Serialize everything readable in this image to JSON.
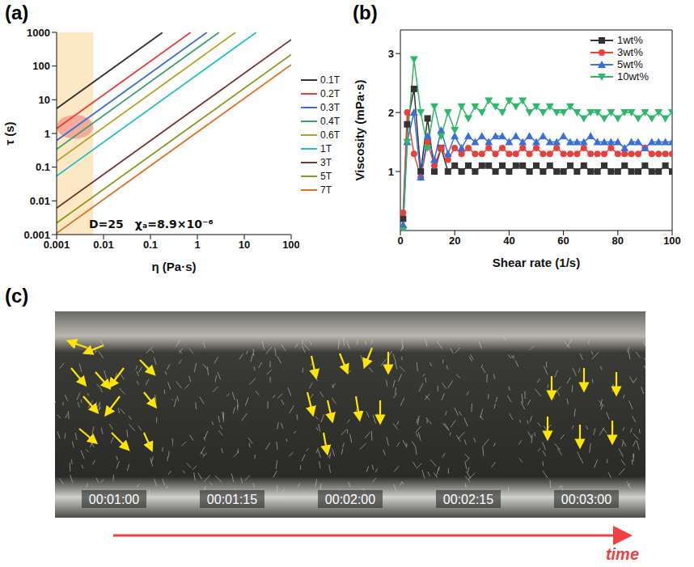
{
  "chart_data": [
    {
      "label": "(a)",
      "type": "line",
      "log": true,
      "x_label": "η (Pa·s)",
      "y_label": "τ (s)",
      "xlim": [
        0.001,
        100
      ],
      "ylim": [
        0.001,
        1000
      ],
      "xticks": [
        0.001,
        0.01,
        0.1,
        1,
        10,
        100
      ],
      "yticks": [
        0.001,
        0.01,
        0.1,
        1,
        10,
        100,
        1000
      ],
      "legend": "right",
      "annotations": [
        "D=25",
        "χₐ=8.9×10⁻⁶"
      ],
      "highlight_x": [
        0.001,
        0.006
      ],
      "highlight_ellipse": {
        "x": [
          0.001,
          0.006
        ],
        "y": [
          0.7,
          3.5
        ]
      },
      "series": [
        {
          "name": "0.1T",
          "color": "#333333",
          "x": [
            0.001,
            0.18
          ],
          "values": [
            5.5,
            990
          ]
        },
        {
          "name": "0.2T",
          "color": "#e8403a",
          "x": [
            0.001,
            0.72
          ],
          "values": [
            1.4,
            1000
          ]
        },
        {
          "name": "0.3T",
          "color": "#3a6fd8",
          "x": [
            0.001,
            1.6
          ],
          "values": [
            0.62,
            1000
          ]
        },
        {
          "name": "0.4T",
          "color": "#3aa06a",
          "x": [
            0.001,
            2.9
          ],
          "values": [
            0.34,
            1000
          ]
        },
        {
          "name": "0.6T",
          "color": "#b8a020",
          "x": [
            0.001,
            6.5
          ],
          "values": [
            0.15,
            1000
          ]
        },
        {
          "name": "1T",
          "color": "#20c0c8",
          "x": [
            0.001,
            18
          ],
          "values": [
            0.055,
            1000
          ]
        },
        {
          "name": "3T",
          "color": "#7a3030",
          "x": [
            0.001,
            100
          ],
          "values": [
            0.0061,
            610
          ]
        },
        {
          "name": "5T",
          "color": "#8a9a20",
          "x": [
            0.001,
            100
          ],
          "values": [
            0.0022,
            220
          ]
        },
        {
          "name": "7T",
          "color": "#e07020",
          "x": [
            0.001,
            100
          ],
          "values": [
            0.0011,
            110
          ]
        }
      ]
    },
    {
      "label": "(b)",
      "type": "line",
      "x_label": "Shear rate (1/s)",
      "y_label": "Viscosity (mPa·s)",
      "xlim": [
        0,
        100
      ],
      "ylim": [
        0,
        3.4
      ],
      "xticks": [
        0,
        20,
        40,
        60,
        80,
        100
      ],
      "yticks": [
        1,
        2,
        3
      ],
      "legend": "upper right",
      "x": [
        1,
        2.5,
        5,
        7.5,
        10,
        12.5,
        15,
        17.5,
        20,
        22.5,
        25,
        27.5,
        30,
        32.5,
        35,
        37.5,
        40,
        42.5,
        45,
        47.5,
        50,
        52.5,
        55,
        57.5,
        60,
        62.5,
        65,
        67.5,
        70,
        72.5,
        75,
        77.5,
        80,
        82.5,
        85,
        87.5,
        90,
        92.5,
        95,
        97.5,
        100
      ],
      "series": [
        {
          "name": "1wt%",
          "color": "#333333",
          "marker": "square",
          "values": [
            0.2,
            1.8,
            2.4,
            1.0,
            1.9,
            1.0,
            1.4,
            1.0,
            1.1,
            1.0,
            1.1,
            1.0,
            1.1,
            1.1,
            1.0,
            1.1,
            1.0,
            1.1,
            1.1,
            1.0,
            1.1,
            1.0,
            1.1,
            1.0,
            1.0,
            1.1,
            1.0,
            1.1,
            1.0,
            1.0,
            1.1,
            1.0,
            1.0,
            1.1,
            1.0,
            1.0,
            1.1,
            1.0,
            1.0,
            1.1,
            1.0
          ]
        },
        {
          "name": "3wt%",
          "color": "#e8403a",
          "marker": "circle",
          "values": [
            0.3,
            2.0,
            1.3,
            0.9,
            1.5,
            1.1,
            1.4,
            1.2,
            1.4,
            1.3,
            1.4,
            1.3,
            1.3,
            1.4,
            1.3,
            1.4,
            1.3,
            1.3,
            1.4,
            1.3,
            1.4,
            1.3,
            1.3,
            1.4,
            1.3,
            1.3,
            1.3,
            1.4,
            1.3,
            1.3,
            1.3,
            1.4,
            1.3,
            1.3,
            1.3,
            1.3,
            1.4,
            1.3,
            1.3,
            1.3,
            1.3
          ]
        },
        {
          "name": "5wt%",
          "color": "#3a6fd8",
          "marker": "triangle",
          "values": [
            0.1,
            1.5,
            2.0,
            0.9,
            1.6,
            1.2,
            1.7,
            1.3,
            1.6,
            1.4,
            1.6,
            1.5,
            1.6,
            1.5,
            1.6,
            1.6,
            1.5,
            1.6,
            1.5,
            1.6,
            1.5,
            1.6,
            1.5,
            1.5,
            1.6,
            1.5,
            1.5,
            1.5,
            1.6,
            1.5,
            1.5,
            1.5,
            1.5,
            1.4,
            1.5,
            1.5,
            1.4,
            1.5,
            1.5,
            1.5,
            1.5
          ]
        },
        {
          "name": "10wt%",
          "color": "#2fb86a",
          "marker": "triangle-down",
          "values": [
            0.0,
            1.5,
            2.9,
            2.0,
            1.4,
            2.1,
            1.6,
            2.0,
            1.7,
            2.1,
            1.9,
            2.1,
            2.0,
            2.2,
            2.1,
            2.0,
            2.2,
            2.1,
            2.2,
            2.0,
            2.1,
            2.0,
            2.1,
            2.0,
            2.0,
            2.1,
            2.0,
            1.9,
            2.0,
            2.0,
            1.9,
            2.0,
            1.9,
            2.0,
            2.0,
            1.9,
            2.0,
            1.9,
            2.0,
            1.9,
            2.0
          ]
        }
      ]
    }
  ],
  "images": {
    "label": "(c)",
    "frames": [
      "00:01:00",
      "00:01:15",
      "00:02:00",
      "00:02:15",
      "00:03:00"
    ],
    "arrow_label": "time"
  }
}
